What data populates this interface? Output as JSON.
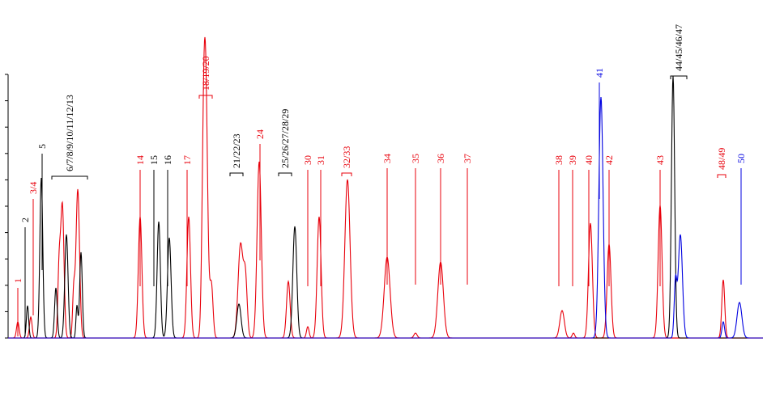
{
  "chart_data": {
    "type": "line",
    "title": "",
    "xlabel": "",
    "ylabel": "",
    "grid": false,
    "legend": "none",
    "x_unit": "peak index",
    "colors": {
      "red": "#e8000b",
      "black": "#000000",
      "blue": "#0000e0"
    },
    "series": [
      {
        "color": "red",
        "peaks": []
      },
      {
        "color": "black",
        "peaks": []
      },
      {
        "color": "blue",
        "peaks": []
      }
    ],
    "peak_labels": [
      {
        "label": "1",
        "color": "red"
      },
      {
        "label": "2",
        "color": "black"
      },
      {
        "label": "3/4",
        "color": "red"
      },
      {
        "label": "5",
        "color": "black"
      },
      {
        "label": "6/7/8/9/10/11/12/13",
        "color": "mixed",
        "bracket": true
      },
      {
        "label": "14",
        "color": "red"
      },
      {
        "label": "15",
        "color": "black"
      },
      {
        "label": "16",
        "color": "black"
      },
      {
        "label": "17",
        "color": "red"
      },
      {
        "label": "18/19/20",
        "color": "red",
        "bracket": true
      },
      {
        "label": "21/22/23",
        "color": "black",
        "bracket": true
      },
      {
        "label": "24",
        "color": "red"
      },
      {
        "label": "25/26/27/28/29",
        "color": "mixed",
        "bracket": true
      },
      {
        "label": "30",
        "color": "red"
      },
      {
        "label": "31",
        "color": "red"
      },
      {
        "label": "32/33",
        "color": "red",
        "bracket": true
      },
      {
        "label": "34",
        "color": "red"
      },
      {
        "label": "35",
        "color": "red"
      },
      {
        "label": "36",
        "color": "red"
      },
      {
        "label": "37",
        "color": "red"
      },
      {
        "label": "38",
        "color": "red"
      },
      {
        "label": "39",
        "color": "red"
      },
      {
        "label": "40",
        "color": "red"
      },
      {
        "label": "41",
        "color": "blue"
      },
      {
        "label": "42",
        "color": "red"
      },
      {
        "label": "43",
        "color": "red"
      },
      {
        "label": "44/45/46/47",
        "color": "mixed",
        "bracket": true
      },
      {
        "label": "48/49",
        "color": "red",
        "bracket": true
      },
      {
        "label": "50",
        "color": "blue"
      }
    ]
  }
}
